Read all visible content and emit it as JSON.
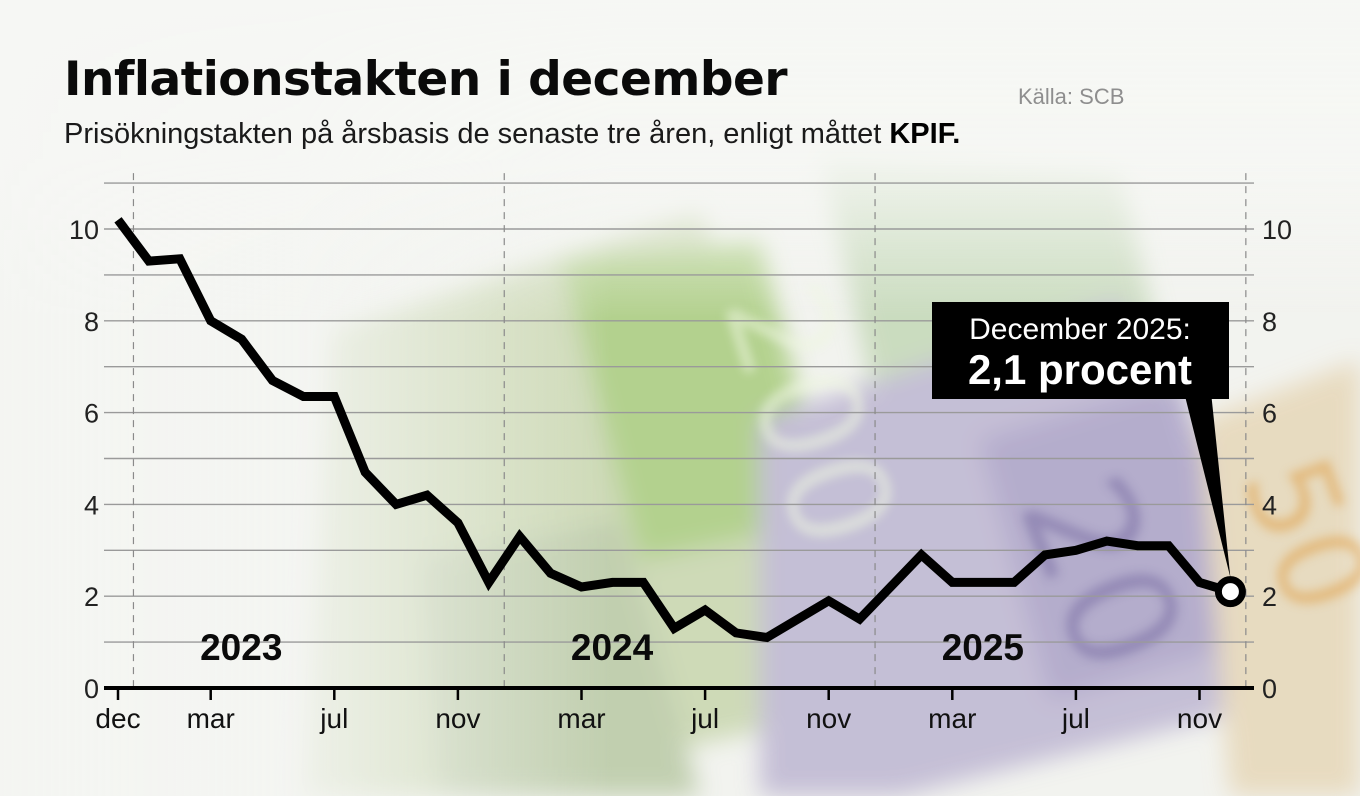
{
  "header": {
    "title": "Inflationstakten i december",
    "source": "Källa: SCB",
    "subtitle_prefix": "Prisökningstakten på årsbasis de senaste tre åren, enligt måttet",
    "subtitle_emphasis": "KPIF."
  },
  "colors": {
    "line": "#000000",
    "grid": "#9a9a9a",
    "callout_bg": "#000000",
    "callout_text": "#ffffff"
  },
  "chart_data": {
    "type": "line",
    "title": "Inflationstakten i december",
    "xlabel": "",
    "ylabel": "",
    "ylim": [
      0,
      10
    ],
    "yticks": [
      "0",
      "2",
      "4",
      "6",
      "8",
      "10"
    ],
    "xtick_labels": [
      {
        "index": 0,
        "label": "dec"
      },
      {
        "index": 3,
        "label": "mar"
      },
      {
        "index": 7,
        "label": "jul"
      },
      {
        "index": 11,
        "label": "nov"
      },
      {
        "index": 15,
        "label": "mar"
      },
      {
        "index": 19,
        "label": "jul"
      },
      {
        "index": 23,
        "label": "nov"
      },
      {
        "index": 27,
        "label": "mar"
      },
      {
        "index": 31,
        "label": "jul"
      },
      {
        "index": 35,
        "label": "nov"
      }
    ],
    "year_labels": [
      {
        "index": 1.33,
        "label": "2023"
      },
      {
        "index": 13.33,
        "label": "2024"
      },
      {
        "index": 25.33,
        "label": "2025"
      }
    ],
    "year_dividers": [
      0.5,
      12.5,
      24.5,
      36.5
    ],
    "series": [
      {
        "values": [
          10.2,
          9.3,
          9.35,
          8.0,
          7.6,
          6.7,
          6.35,
          6.35,
          4.7,
          4.0,
          4.2,
          3.6,
          2.3,
          3.3,
          2.5,
          2.2,
          2.3,
          2.3,
          1.3,
          1.7,
          1.2,
          1.1,
          1.5,
          1.9,
          1.5,
          2.2,
          2.9,
          2.3,
          2.3,
          2.3,
          2.9,
          3.0,
          3.2,
          3.1,
          3.1,
          2.3,
          2.1
        ]
      }
    ],
    "callout": {
      "line1": "December 2025:",
      "line2": "2,1 procent",
      "index": 36
    }
  }
}
